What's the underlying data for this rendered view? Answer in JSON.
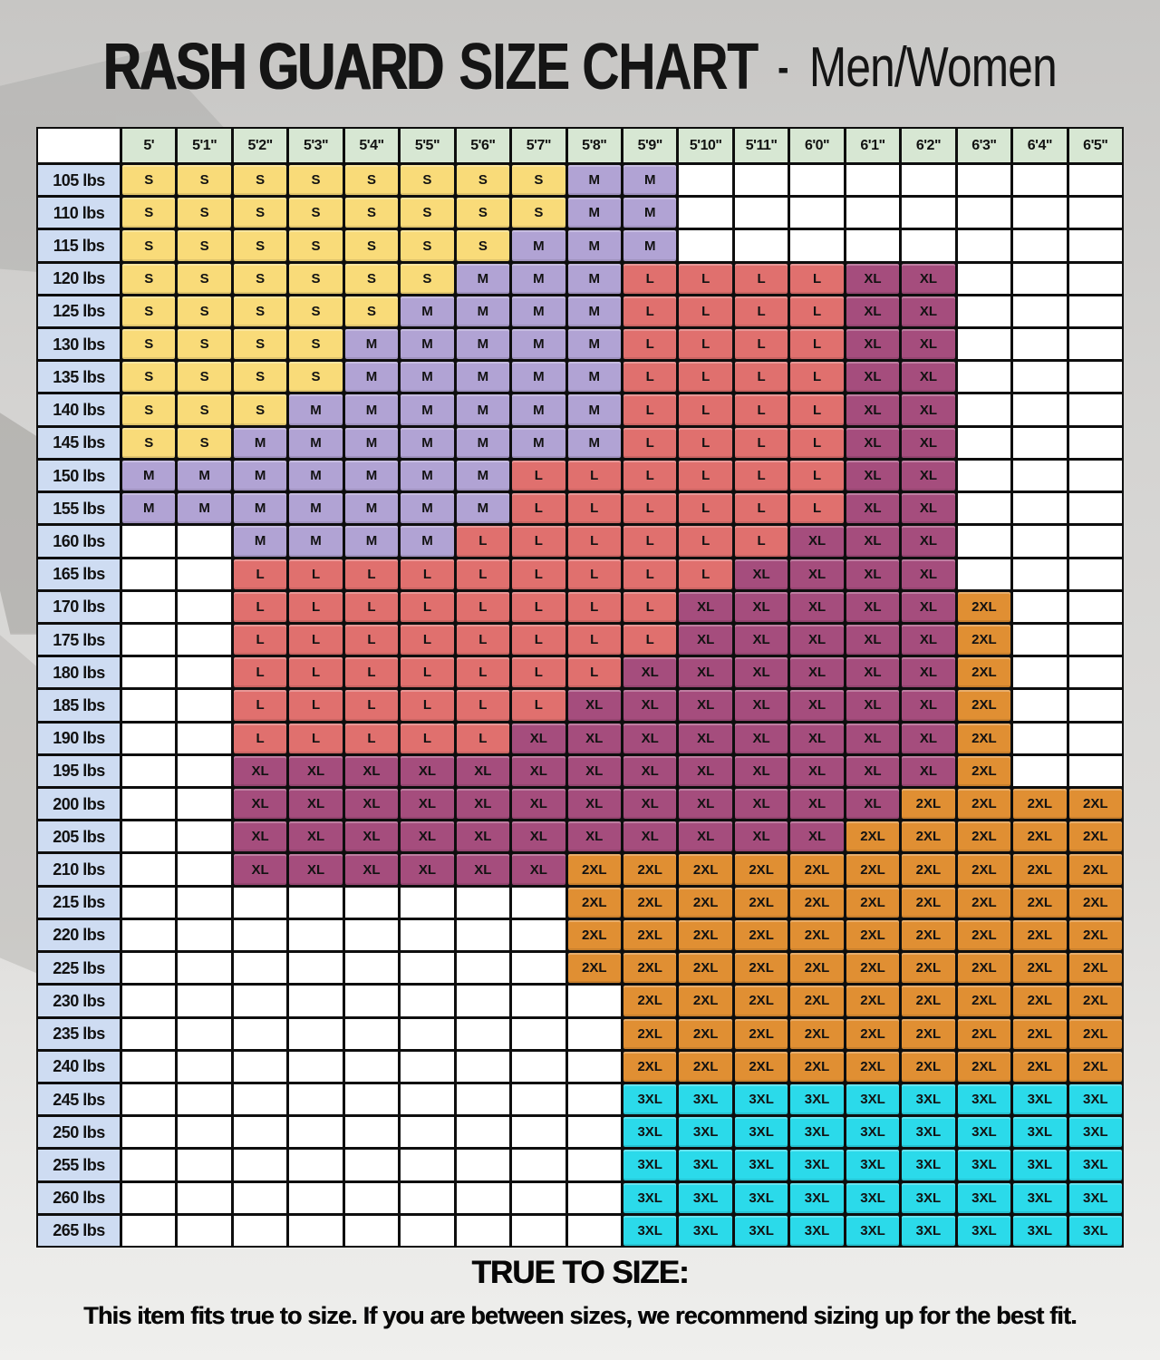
{
  "title": {
    "part1": "RASH GUARD",
    "part2": "SIZE CHART",
    "separator": "-",
    "part3": "Men/Women"
  },
  "colors": {
    "S": "#f9db79",
    "M": "#b1a3d4",
    "L": "#e0706e",
    "XL": "#a54d7d",
    "2XL": "#e08f33",
    "3XL": "#2bdaea",
    "height_header": "#d7e7d3",
    "weight_label": "#cedcf2",
    "empty": "#ffffff",
    "grid_line": "#0e0e0e"
  },
  "chart_data": {
    "type": "table",
    "title": "RASH GUARD SIZE CHART - Men/Women",
    "columns": [
      "5'",
      "5'1\"",
      "5'2\"",
      "5'3\"",
      "5'4\"",
      "5'5\"",
      "5'6\"",
      "5'7\"",
      "5'8\"",
      "5'9\"",
      "5'10\"",
      "5'11\"",
      "6'0\"",
      "6'1\"",
      "6'2\"",
      "6'3\"",
      "6'4\"",
      "6'5\""
    ],
    "row_labels": [
      "105 lbs",
      "110 lbs",
      "115 lbs",
      "120 lbs",
      "125 lbs",
      "130 lbs",
      "135 lbs",
      "140 lbs",
      "145 lbs",
      "150 lbs",
      "155 lbs",
      "160 lbs",
      "165 lbs",
      "170 lbs",
      "175 lbs",
      "180 lbs",
      "185 lbs",
      "190 lbs",
      "195 lbs",
      "200 lbs",
      "205 lbs",
      "210 lbs",
      "215 lbs",
      "220 lbs",
      "225 lbs",
      "230 lbs",
      "235 lbs",
      "240 lbs",
      "245 lbs",
      "250 lbs",
      "255 lbs",
      "260 lbs",
      "265 lbs"
    ],
    "cells": [
      [
        "S",
        "S",
        "S",
        "S",
        "S",
        "S",
        "S",
        "S",
        "M",
        "M",
        "",
        "",
        "",
        "",
        "",
        "",
        "",
        ""
      ],
      [
        "S",
        "S",
        "S",
        "S",
        "S",
        "S",
        "S",
        "S",
        "M",
        "M",
        "",
        "",
        "",
        "",
        "",
        "",
        "",
        ""
      ],
      [
        "S",
        "S",
        "S",
        "S",
        "S",
        "S",
        "S",
        "M",
        "M",
        "M",
        "",
        "",
        "",
        "",
        "",
        "",
        "",
        ""
      ],
      [
        "S",
        "S",
        "S",
        "S",
        "S",
        "S",
        "M",
        "M",
        "M",
        "L",
        "L",
        "L",
        "L",
        "XL",
        "XL",
        "",
        "",
        ""
      ],
      [
        "S",
        "S",
        "S",
        "S",
        "S",
        "M",
        "M",
        "M",
        "M",
        "L",
        "L",
        "L",
        "L",
        "XL",
        "XL",
        "",
        "",
        ""
      ],
      [
        "S",
        "S",
        "S",
        "S",
        "M",
        "M",
        "M",
        "M",
        "M",
        "L",
        "L",
        "L",
        "L",
        "XL",
        "XL",
        "",
        "",
        ""
      ],
      [
        "S",
        "S",
        "S",
        "S",
        "M",
        "M",
        "M",
        "M",
        "M",
        "L",
        "L",
        "L",
        "L",
        "XL",
        "XL",
        "",
        "",
        ""
      ],
      [
        "S",
        "S",
        "S",
        "M",
        "M",
        "M",
        "M",
        "M",
        "M",
        "L",
        "L",
        "L",
        "L",
        "XL",
        "XL",
        "",
        "",
        ""
      ],
      [
        "S",
        "S",
        "M",
        "M",
        "M",
        "M",
        "M",
        "M",
        "M",
        "L",
        "L",
        "L",
        "L",
        "XL",
        "XL",
        "",
        "",
        ""
      ],
      [
        "M",
        "M",
        "M",
        "M",
        "M",
        "M",
        "M",
        "L",
        "L",
        "L",
        "L",
        "L",
        "L",
        "XL",
        "XL",
        "",
        "",
        ""
      ],
      [
        "M",
        "M",
        "M",
        "M",
        "M",
        "M",
        "M",
        "L",
        "L",
        "L",
        "L",
        "L",
        "L",
        "XL",
        "XL",
        "",
        "",
        ""
      ],
      [
        "",
        "",
        "M",
        "M",
        "M",
        "M",
        "L",
        "L",
        "L",
        "L",
        "L",
        "L",
        "XL",
        "XL",
        "XL",
        "",
        "",
        ""
      ],
      [
        "",
        "",
        "L",
        "L",
        "L",
        "L",
        "L",
        "L",
        "L",
        "L",
        "L",
        "XL",
        "XL",
        "XL",
        "XL",
        "",
        "",
        ""
      ],
      [
        "",
        "",
        "L",
        "L",
        "L",
        "L",
        "L",
        "L",
        "L",
        "L",
        "XL",
        "XL",
        "XL",
        "XL",
        "XL",
        "2XL",
        "",
        ""
      ],
      [
        "",
        "",
        "L",
        "L",
        "L",
        "L",
        "L",
        "L",
        "L",
        "L",
        "XL",
        "XL",
        "XL",
        "XL",
        "XL",
        "2XL",
        "",
        ""
      ],
      [
        "",
        "",
        "L",
        "L",
        "L",
        "L",
        "L",
        "L",
        "L",
        "XL",
        "XL",
        "XL",
        "XL",
        "XL",
        "XL",
        "2XL",
        "",
        ""
      ],
      [
        "",
        "",
        "L",
        "L",
        "L",
        "L",
        "L",
        "L",
        "XL",
        "XL",
        "XL",
        "XL",
        "XL",
        "XL",
        "XL",
        "2XL",
        "",
        ""
      ],
      [
        "",
        "",
        "L",
        "L",
        "L",
        "L",
        "L",
        "XL",
        "XL",
        "XL",
        "XL",
        "XL",
        "XL",
        "XL",
        "XL",
        "2XL",
        "",
        ""
      ],
      [
        "",
        "",
        "XL",
        "XL",
        "XL",
        "XL",
        "XL",
        "XL",
        "XL",
        "XL",
        "XL",
        "XL",
        "XL",
        "XL",
        "XL",
        "2XL",
        "",
        ""
      ],
      [
        "",
        "",
        "XL",
        "XL",
        "XL",
        "XL",
        "XL",
        "XL",
        "XL",
        "XL",
        "XL",
        "XL",
        "XL",
        "XL",
        "2XL",
        "2XL",
        "2XL",
        "2XL"
      ],
      [
        "",
        "",
        "XL",
        "XL",
        "XL",
        "XL",
        "XL",
        "XL",
        "XL",
        "XL",
        "XL",
        "XL",
        "XL",
        "2XL",
        "2XL",
        "2XL",
        "2XL",
        "2XL"
      ],
      [
        "",
        "",
        "XL",
        "XL",
        "XL",
        "XL",
        "XL",
        "XL",
        "2XL",
        "2XL",
        "2XL",
        "2XL",
        "2XL",
        "2XL",
        "2XL",
        "2XL",
        "2XL",
        "2XL"
      ],
      [
        "",
        "",
        "",
        "",
        "",
        "",
        "",
        "",
        "2XL",
        "2XL",
        "2XL",
        "2XL",
        "2XL",
        "2XL",
        "2XL",
        "2XL",
        "2XL",
        "2XL"
      ],
      [
        "",
        "",
        "",
        "",
        "",
        "",
        "",
        "",
        "2XL",
        "2XL",
        "2XL",
        "2XL",
        "2XL",
        "2XL",
        "2XL",
        "2XL",
        "2XL",
        "2XL"
      ],
      [
        "",
        "",
        "",
        "",
        "",
        "",
        "",
        "",
        "2XL",
        "2XL",
        "2XL",
        "2XL",
        "2XL",
        "2XL",
        "2XL",
        "2XL",
        "2XL",
        "2XL"
      ],
      [
        "",
        "",
        "",
        "",
        "",
        "",
        "",
        "",
        "",
        "2XL",
        "2XL",
        "2XL",
        "2XL",
        "2XL",
        "2XL",
        "2XL",
        "2XL",
        "2XL"
      ],
      [
        "",
        "",
        "",
        "",
        "",
        "",
        "",
        "",
        "",
        "2XL",
        "2XL",
        "2XL",
        "2XL",
        "2XL",
        "2XL",
        "2XL",
        "2XL",
        "2XL"
      ],
      [
        "",
        "",
        "",
        "",
        "",
        "",
        "",
        "",
        "",
        "2XL",
        "2XL",
        "2XL",
        "2XL",
        "2XL",
        "2XL",
        "2XL",
        "2XL",
        "2XL"
      ],
      [
        "",
        "",
        "",
        "",
        "",
        "",
        "",
        "",
        "",
        "3XL",
        "3XL",
        "3XL",
        "3XL",
        "3XL",
        "3XL",
        "3XL",
        "3XL",
        "3XL"
      ],
      [
        "",
        "",
        "",
        "",
        "",
        "",
        "",
        "",
        "",
        "3XL",
        "3XL",
        "3XL",
        "3XL",
        "3XL",
        "3XL",
        "3XL",
        "3XL",
        "3XL"
      ],
      [
        "",
        "",
        "",
        "",
        "",
        "",
        "",
        "",
        "",
        "3XL",
        "3XL",
        "3XL",
        "3XL",
        "3XL",
        "3XL",
        "3XL",
        "3XL",
        "3XL"
      ],
      [
        "",
        "",
        "",
        "",
        "",
        "",
        "",
        "",
        "",
        "3XL",
        "3XL",
        "3XL",
        "3XL",
        "3XL",
        "3XL",
        "3XL",
        "3XL",
        "3XL"
      ],
      [
        "",
        "",
        "",
        "",
        "",
        "",
        "",
        "",
        "",
        "3XL",
        "3XL",
        "3XL",
        "3XL",
        "3XL",
        "3XL",
        "3XL",
        "3XL",
        "3XL"
      ]
    ],
    "legend_position": "none",
    "grid": true
  },
  "footer": {
    "heading": "TRUE TO SIZE:",
    "text": "This item fits true to size. If you are between sizes, we recommend sizing up for the best fit."
  }
}
